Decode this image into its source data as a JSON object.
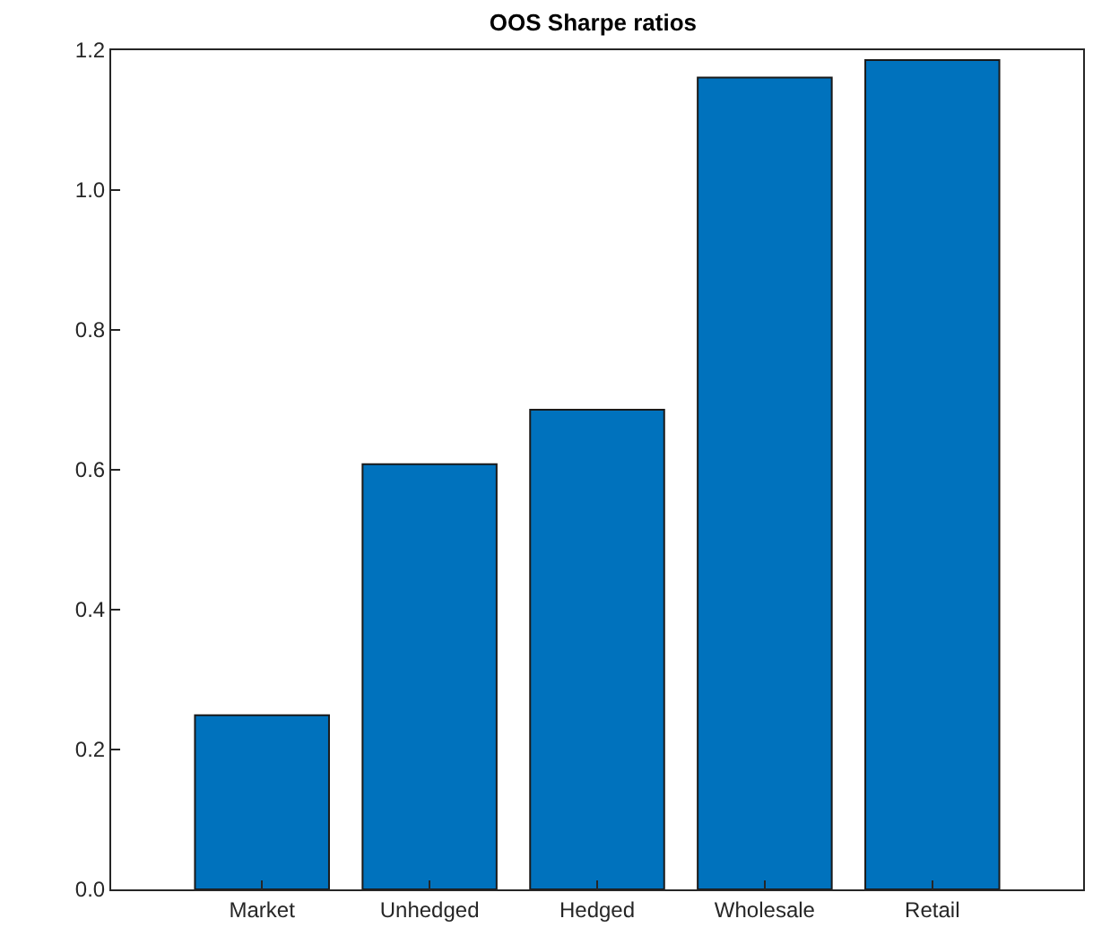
{
  "chart_data": {
    "type": "bar",
    "title": "OOS Sharpe ratios",
    "categories": [
      "Market",
      "Unhedged",
      "Hedged",
      "Wholesale",
      "Retail"
    ],
    "values": [
      0.249,
      0.608,
      0.686,
      1.161,
      1.186
    ],
    "color": "#0072bd",
    "ylim": [
      0,
      1.2
    ],
    "yticks": [
      {
        "value": 0,
        "label": "0.0"
      },
      0.2,
      0.4,
      0.6,
      0.8,
      {
        "value": 1,
        "label": "1.0"
      },
      1.2
    ],
    "grid": false,
    "legend": false
  }
}
